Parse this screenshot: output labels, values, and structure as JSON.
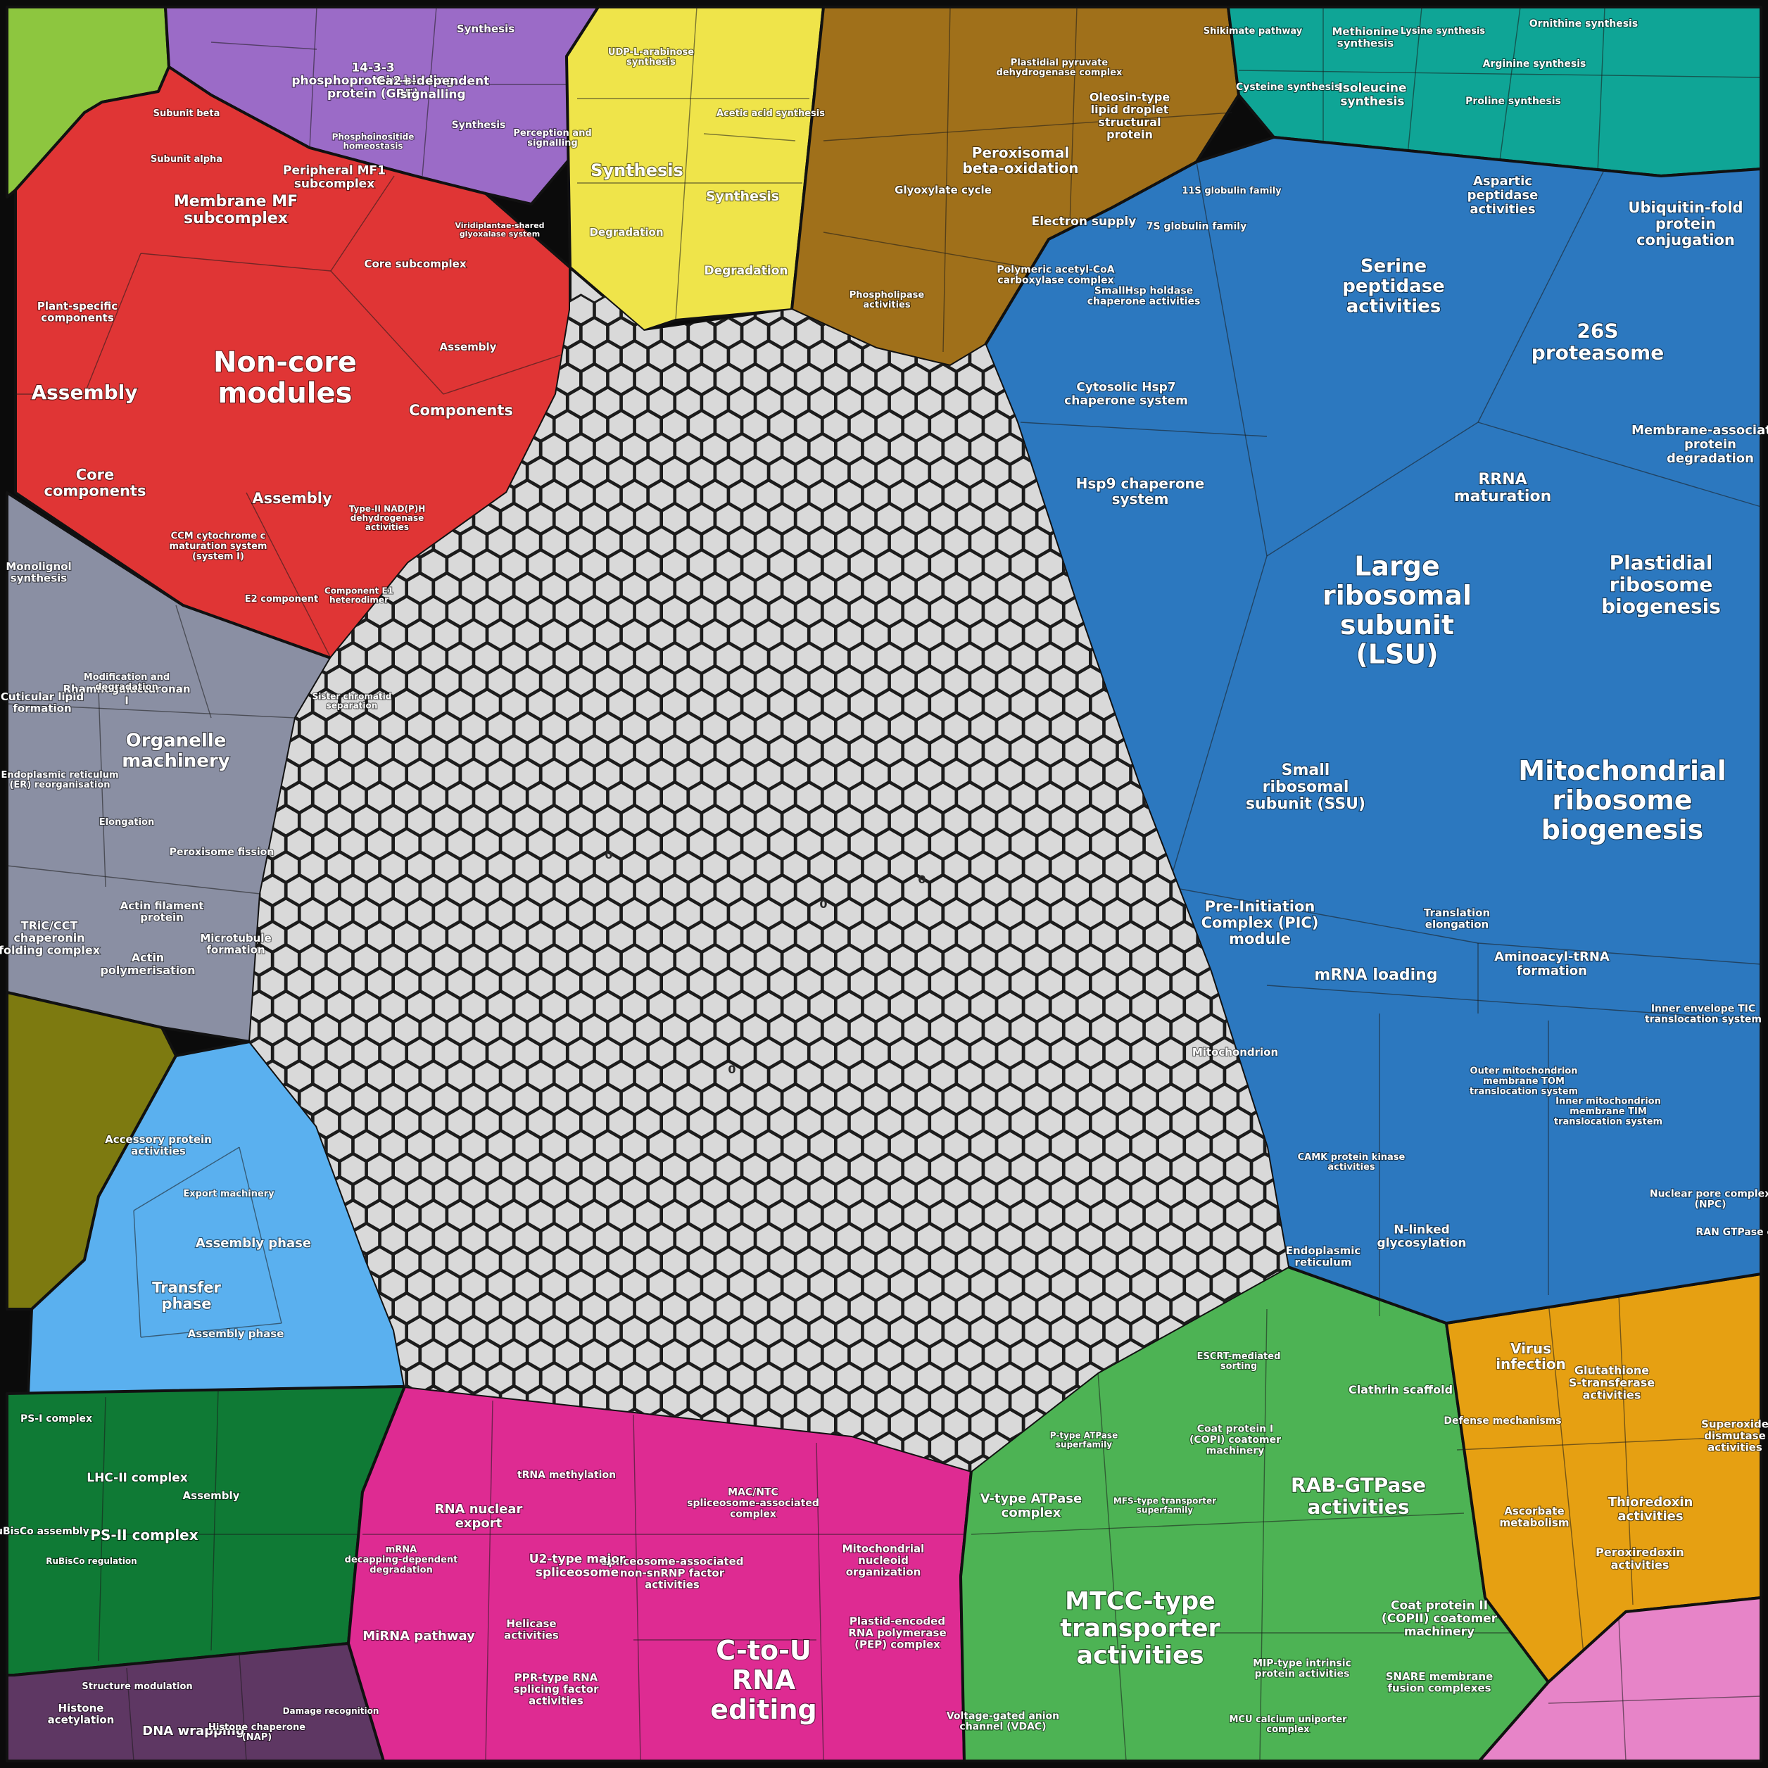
{
  "chart_data": {
    "type": "treemap",
    "colors": {
      "lightgreen": "#8dc63f",
      "purple": "#9b6bc7",
      "yellow": "#efe44a",
      "brown": "#a0701a",
      "teal": "#0fa596",
      "red": "#e03535",
      "gray": "#8a8fa3",
      "olive": "#7d7a10",
      "lightblue": "#5ab0ef",
      "darkgreen": "#0f7a35",
      "darkpurple": "#5e3763",
      "magenta": "#de2b92",
      "green": "#4db354",
      "orange": "#e6a012",
      "pink": "#e784c8",
      "blue": "#2c78bf",
      "hexgray": "#d9d9d9"
    },
    "groups": [
      {
        "color": "lightgreen",
        "labels": []
      },
      {
        "color": "purple",
        "labels": [
          "14-3-3 phosphoprotein-binding protein (GRF)",
          "Ca2+-dependent signalling",
          "Synthesis",
          "Synthesis",
          "Perception and signalling",
          "Phosphoinositide homeostasis"
        ]
      },
      {
        "color": "yellow",
        "labels": [
          "UDP-L-arabinose synthesis",
          "Acetic acid synthesis",
          "Synthesis",
          "Synthesis",
          "Degradation",
          "Degradation"
        ]
      },
      {
        "color": "brown",
        "labels": [
          "Oleosin-type lipid droplet structural protein",
          "Plastidial pyruvate dehydrogenase complex",
          "Peroxisomal beta-oxidation",
          "Glyoxylate cycle",
          "Electron supply",
          "Polymeric acetyl-CoA carboxylase complex",
          "Phospholipase activities"
        ]
      },
      {
        "color": "teal",
        "labels": [
          "Shikimate pathway",
          "Methionine synthesis",
          "Lysine synthesis",
          "Ornithine synthesis",
          "Cysteine synthesis",
          "Isoleucine synthesis",
          "Arginine synthesis",
          "Proline synthesis"
        ]
      },
      {
        "color": "red",
        "labels": [
          "Non-core modules",
          "Assembly",
          "Membrane MF subcomplex",
          "Peripheral MF1 subcomplex",
          "Core subcomplex",
          "Components",
          "Assembly",
          "Core components",
          "Plant-specific components",
          "Assembly",
          "Type-II NAD(P)H dehydrogenase activities",
          "CCM cytochrome c maturation system (system I)",
          "Subunit beta",
          "Subunit alpha",
          "Viridiplantae-shared glyoxalase system",
          "E2 component",
          "Component E1 heterodimer"
        ]
      },
      {
        "color": "gray",
        "labels": [
          "Organelle machinery",
          "Rhamnogalacturonan I",
          "Monolignol synthesis",
          "Modification and degradation",
          "Cuticular lipid formation",
          "Sister chromatid separation",
          "Endoplasmic reticulum (ER) reorganisation",
          "Elongation",
          "Peroxisome fission",
          "TRiC/CCT chaperonin folding complex",
          "Actin filament protein",
          "Actin polymerisation",
          "Microtubule formation"
        ]
      },
      {
        "color": "olive",
        "labels": []
      },
      {
        "color": "lightblue",
        "labels": [
          "Accessory protein activities",
          "Export machinery",
          "Assembly phase",
          "Transfer phase",
          "Assembly phase"
        ]
      },
      {
        "color": "darkgreen",
        "labels": [
          "LHC-II complex",
          "PS-II complex",
          "PS-I complex",
          "RuBisCo assembly",
          "RuBisCo regulation",
          "Assembly"
        ]
      },
      {
        "color": "darkpurple",
        "labels": [
          "DNA wrapping",
          "Histone acetylation",
          "Structure modulation",
          "Histone chaperone (NAP)",
          "Damage recognition"
        ]
      },
      {
        "color": "magenta",
        "labels": [
          "C-to-U RNA editing",
          "Spliceosome-associated non-snRNP factor activities",
          "U2-type major spliceosome",
          "RNA nuclear export",
          "MiRNA pathway",
          "mRNA decapping-dependent degradation",
          "PPR-type RNA splicing factor activities",
          "Helicase activities",
          "Plastid-encoded RNA polymerase (PEP) complex",
          "MAC/NTC spliceosome-associated complex",
          "Mitochondrial nucleoid organization",
          "tRNA methylation"
        ]
      },
      {
        "color": "green",
        "labels": [
          "MTCC-type transporter activities",
          "RAB-GTPase activities",
          "V-type ATPase complex",
          "Coat protein II (COPII) coatomer machinery",
          "Clathrin scaffold",
          "ESCRT-mediated sorting",
          "MIP-type intrinsic protein activities",
          "SNARE membrane fusion complexes",
          "MCU calcium uniporter complex",
          "Voltage-gated anion channel (VDAC)",
          "Coat protein I (COPI) coatomer machinery",
          "P-type ATPase superfamily",
          "MFS-type transporter superfamily"
        ]
      },
      {
        "color": "orange",
        "labels": [
          "Virus infection",
          "Glutathione S-transferase activities",
          "Thioredoxin activities",
          "Peroxiredoxin activities",
          "Superoxide dismutase activities",
          "Ascorbate metabolism",
          "Defense mechanisms"
        ]
      },
      {
        "color": "pink",
        "labels": []
      },
      {
        "color": "blue",
        "labels": [
          "Large ribosomal subunit (LSU)",
          "Mitochondrial ribosome biogenesis",
          "26S proteasome",
          "Serine peptidase activities",
          "Plastidial ribosome biogenesis",
          "Small ribosomal subunit (SSU)",
          "RRNA maturation",
          "Ubiquitin-fold protein conjugation",
          "Membrane-associated protein degradation",
          "Aspartic peptidase activities",
          "Hsp9 chaperone system",
          "Cytosolic Hsp7 chaperone system",
          "Pre-Initiation Complex (PIC) module",
          "mRNA loading",
          "Aminoacyl-tRNA formation",
          "Translation elongation",
          "Mitochondrion",
          "N-linked glycosylation",
          "Endoplasmic reticulum",
          "Outer mitochondrion membrane TOM translocation system",
          "Inner mitochondrion membrane TIM translocation system",
          "Inner envelope TIC translocation system",
          "Nuclear pore complex (NPC)",
          "RAN GTPase cycle",
          "7S globulin family",
          "11S globulin family",
          "SmallHsp holdase chaperone activities",
          "CAMK protein kinase activities"
        ]
      },
      {
        "color": "hexgray",
        "labels": [
          "0",
          "0",
          "0",
          "0"
        ]
      }
    ]
  }
}
